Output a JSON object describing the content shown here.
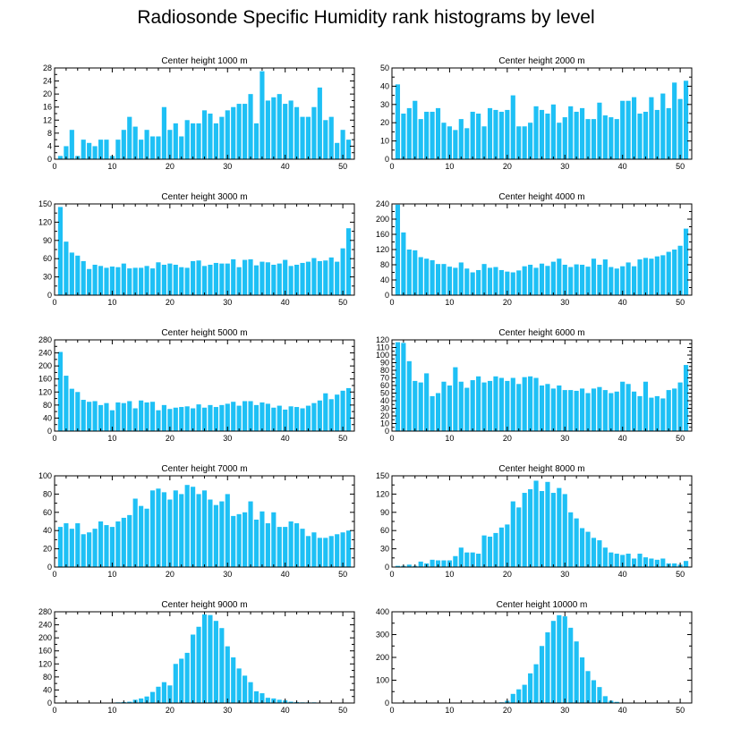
{
  "title": "Radiosonde Specific Humidity rank histograms by level",
  "bar_color": "#1ec0f5",
  "chart_data": [
    {
      "type": "bar",
      "title": "Center height 1000 m",
      "xlim": [
        0,
        52
      ],
      "ylim": [
        0,
        28
      ],
      "xticks": [
        0,
        10,
        20,
        30,
        40,
        50
      ],
      "yticks": [
        0,
        4,
        8,
        12,
        16,
        20,
        24,
        28
      ],
      "values": [
        1,
        4,
        9,
        1,
        6,
        5,
        4,
        6,
        6,
        1,
        6,
        9,
        13,
        10,
        6,
        9,
        7,
        7,
        16,
        9,
        11,
        7,
        12,
        11,
        11,
        15,
        14,
        11,
        13,
        15,
        16,
        17,
        17,
        20,
        11,
        27,
        18,
        19,
        20,
        17,
        18,
        16,
        13,
        13,
        16,
        22,
        12,
        13,
        5,
        9,
        6
      ]
    },
    {
      "type": "bar",
      "title": "Center height 2000 m",
      "xlim": [
        0,
        52
      ],
      "ylim": [
        0,
        50
      ],
      "xticks": [
        0,
        10,
        20,
        30,
        40,
        50
      ],
      "yticks": [
        0,
        10,
        20,
        30,
        40,
        50
      ],
      "values": [
        41,
        25,
        28,
        32,
        22,
        26,
        26,
        28,
        20,
        18,
        16,
        22,
        17,
        26,
        25,
        18,
        28,
        27,
        26,
        27,
        35,
        18,
        18,
        20,
        29,
        27,
        25,
        30,
        20,
        23,
        29,
        26,
        28,
        22,
        22,
        31,
        24,
        23,
        22,
        32,
        32,
        34,
        25,
        26,
        34,
        27,
        36,
        28,
        42,
        33,
        43
      ]
    },
    {
      "type": "bar",
      "title": "Center height 3000 m",
      "xlim": [
        0,
        52
      ],
      "ylim": [
        0,
        150
      ],
      "xticks": [
        0,
        10,
        20,
        30,
        40,
        50
      ],
      "yticks": [
        0,
        30,
        60,
        90,
        120,
        150
      ],
      "values": [
        145,
        88,
        70,
        65,
        56,
        43,
        50,
        48,
        45,
        47,
        46,
        52,
        44,
        45,
        45,
        48,
        44,
        54,
        50,
        52,
        50,
        46,
        45,
        56,
        57,
        48,
        50,
        53,
        52,
        52,
        59,
        46,
        58,
        59,
        49,
        55,
        54,
        50,
        52,
        58,
        48,
        50,
        53,
        55,
        61,
        56,
        57,
        62,
        55,
        77,
        110
      ]
    },
    {
      "type": "bar",
      "title": "Center height 4000 m",
      "xlim": [
        0,
        52
      ],
      "ylim": [
        0,
        240
      ],
      "xticks": [
        0,
        10,
        20,
        30,
        40,
        50
      ],
      "yticks": [
        0,
        40,
        80,
        120,
        160,
        200,
        240
      ],
      "values": [
        238,
        165,
        120,
        118,
        100,
        96,
        92,
        82,
        82,
        75,
        72,
        86,
        70,
        60,
        66,
        82,
        72,
        74,
        66,
        62,
        60,
        65,
        76,
        80,
        72,
        83,
        77,
        88,
        96,
        80,
        74,
        81,
        80,
        75,
        96,
        80,
        94,
        74,
        70,
        76,
        86,
        76,
        94,
        98,
        96,
        102,
        105,
        114,
        120,
        130,
        175
      ]
    },
    {
      "type": "bar",
      "title": "Center height 5000 m",
      "xlim": [
        0,
        52
      ],
      "ylim": [
        0,
        280
      ],
      "xticks": [
        0,
        10,
        20,
        30,
        40,
        50
      ],
      "yticks": [
        0,
        40,
        80,
        120,
        160,
        200,
        240,
        280
      ],
      "values": [
        243,
        170,
        130,
        120,
        96,
        90,
        92,
        80,
        86,
        64,
        88,
        86,
        92,
        70,
        94,
        88,
        90,
        64,
        80,
        68,
        72,
        74,
        76,
        70,
        82,
        72,
        80,
        74,
        80,
        84,
        90,
        78,
        92,
        92,
        80,
        88,
        84,
        72,
        78,
        66,
        76,
        74,
        70,
        78,
        86,
        94,
        116,
        98,
        112,
        124,
        132
      ]
    },
    {
      "type": "bar",
      "title": "Center height 6000 m",
      "xlim": [
        0,
        52
      ],
      "ylim": [
        0,
        120
      ],
      "xticks": [
        0,
        10,
        20,
        30,
        40,
        50
      ],
      "yticks": [
        0,
        10,
        20,
        30,
        40,
        50,
        60,
        70,
        80,
        90,
        100,
        110,
        120
      ],
      "values": [
        117,
        116,
        92,
        66,
        64,
        76,
        46,
        50,
        65,
        60,
        84,
        65,
        57,
        67,
        72,
        64,
        66,
        72,
        70,
        66,
        70,
        62,
        71,
        72,
        70,
        60,
        62,
        56,
        60,
        54,
        54,
        53,
        56,
        50,
        56,
        58,
        54,
        50,
        52,
        65,
        62,
        52,
        46,
        65,
        44,
        46,
        43,
        54,
        56,
        64,
        87
      ]
    },
    {
      "type": "bar",
      "title": "Center height 7000 m",
      "xlim": [
        0,
        52
      ],
      "ylim": [
        0,
        100
      ],
      "xticks": [
        0,
        10,
        20,
        30,
        40,
        50
      ],
      "yticks": [
        0,
        20,
        40,
        60,
        80,
        100
      ],
      "values": [
        44,
        48,
        42,
        48,
        36,
        38,
        42,
        50,
        46,
        44,
        50,
        54,
        57,
        75,
        67,
        64,
        84,
        86,
        82,
        74,
        84,
        80,
        90,
        88,
        80,
        84,
        74,
        68,
        72,
        80,
        56,
        58,
        60,
        72,
        52,
        61,
        48,
        60,
        44,
        44,
        50,
        48,
        42,
        34,
        38,
        32,
        32,
        34,
        36,
        38,
        40
      ]
    },
    {
      "type": "bar",
      "title": "Center height 8000 m",
      "xlim": [
        0,
        52
      ],
      "ylim": [
        0,
        150
      ],
      "xticks": [
        0,
        10,
        20,
        30,
        40,
        50
      ],
      "yticks": [
        0,
        30,
        60,
        90,
        120,
        150
      ],
      "values": [
        2,
        2,
        4,
        2,
        9,
        6,
        12,
        11,
        11,
        11,
        18,
        32,
        24,
        24,
        22,
        52,
        50,
        56,
        65,
        70,
        108,
        98,
        122,
        128,
        142,
        125,
        140,
        122,
        130,
        120,
        90,
        80,
        64,
        58,
        48,
        44,
        32,
        24,
        22,
        20,
        22,
        14,
        22,
        16,
        14,
        12,
        14,
        6,
        6,
        4,
        10
      ]
    },
    {
      "type": "bar",
      "title": "Center height 9000 m",
      "xlim": [
        0,
        52
      ],
      "ylim": [
        0,
        280
      ],
      "xticks": [
        0,
        10,
        20,
        30,
        40,
        50
      ],
      "yticks": [
        0,
        40,
        80,
        120,
        160,
        200,
        240,
        280
      ],
      "values": [
        0,
        0,
        0,
        0,
        0,
        0,
        0,
        0,
        0,
        0,
        2,
        3,
        4,
        10,
        14,
        20,
        34,
        50,
        64,
        54,
        120,
        136,
        154,
        210,
        234,
        272,
        270,
        252,
        230,
        174,
        140,
        106,
        84,
        64,
        36,
        30,
        16,
        14,
        10,
        8,
        4,
        3,
        2,
        2,
        2,
        0,
        0,
        0,
        0,
        0,
        0
      ]
    },
    {
      "type": "bar",
      "title": "Center height 10000 m",
      "xlim": [
        0,
        52
      ],
      "ylim": [
        0,
        400
      ],
      "xticks": [
        0,
        10,
        20,
        30,
        40,
        50
      ],
      "yticks": [
        0,
        100,
        200,
        300,
        400
      ],
      "values": [
        0,
        0,
        0,
        0,
        0,
        0,
        0,
        0,
        0,
        0,
        0,
        0,
        0,
        0,
        0,
        0,
        0,
        0,
        3,
        10,
        40,
        60,
        80,
        130,
        170,
        250,
        310,
        360,
        385,
        380,
        330,
        270,
        200,
        140,
        100,
        70,
        30,
        10,
        5,
        2,
        0,
        0,
        0,
        0,
        0,
        0,
        0,
        0,
        0,
        0,
        0
      ]
    }
  ]
}
